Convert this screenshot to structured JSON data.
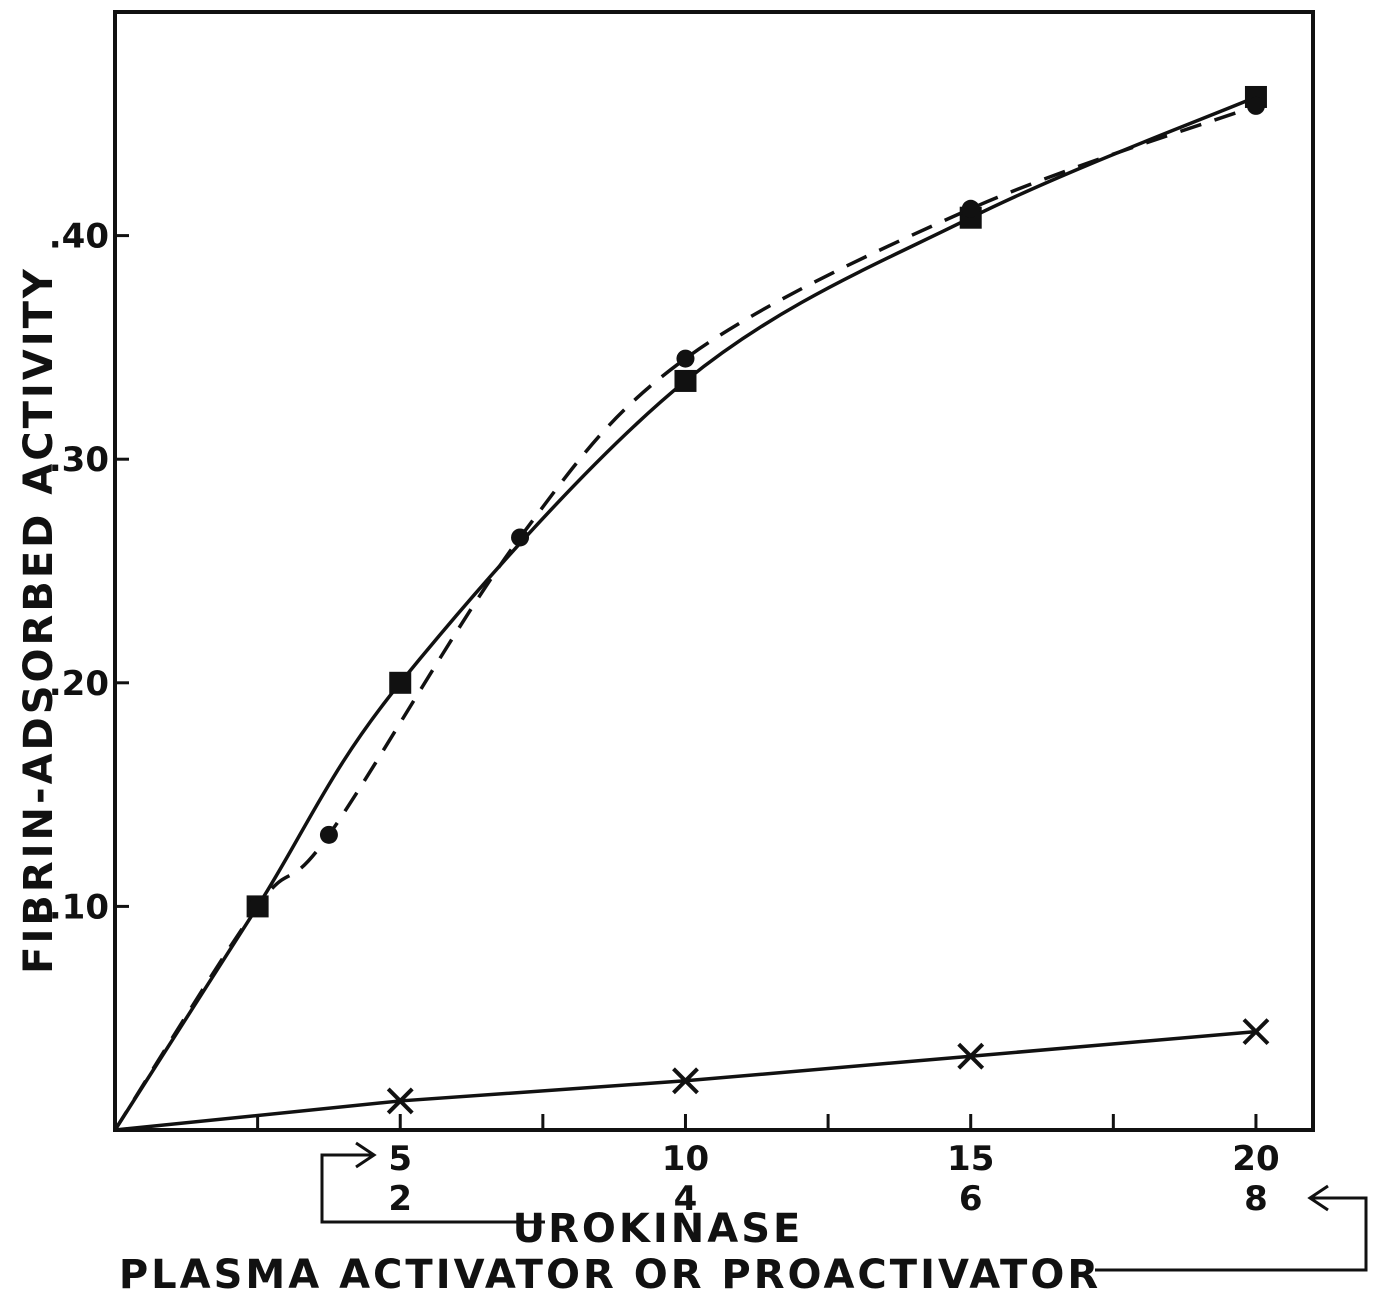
{
  "chart_data": {
    "type": "line",
    "xlabel_primary": "UROKINASE",
    "xlabel_secondary": "PLASMA ACTIVATOR OR PROACTIVATOR",
    "ylabel": "FIBRIN-ADSORBED ACTIVITY",
    "x_ticks_primary": [
      "5",
      "10",
      "15",
      "20"
    ],
    "x_ticks_secondary": [
      "2",
      "4",
      "6",
      "8"
    ],
    "y_ticks": [
      ".10",
      ".20",
      ".30",
      ".40"
    ],
    "xlim": [
      0,
      21
    ],
    "ylim": [
      0,
      0.5
    ],
    "grid": false,
    "legend": "none",
    "series": [
      {
        "style": "solid",
        "marker": "square",
        "x": [
          0,
          2.5,
          5,
          10,
          15,
          20
        ],
        "y": [
          0,
          0.1,
          0.2,
          0.335,
          0.408,
          0.462
        ]
      },
      {
        "style": "dashed",
        "marker": "circle",
        "x": [
          0,
          2.5,
          3.75,
          7.1,
          10,
          15,
          20
        ],
        "y": [
          0,
          0.1,
          0.132,
          0.265,
          0.345,
          0.412,
          0.458
        ]
      },
      {
        "style": "solid",
        "marker": "x",
        "x": [
          0,
          5,
          10,
          15,
          20
        ],
        "y": [
          0,
          0.013,
          0.022,
          0.033,
          0.044
        ]
      }
    ]
  }
}
